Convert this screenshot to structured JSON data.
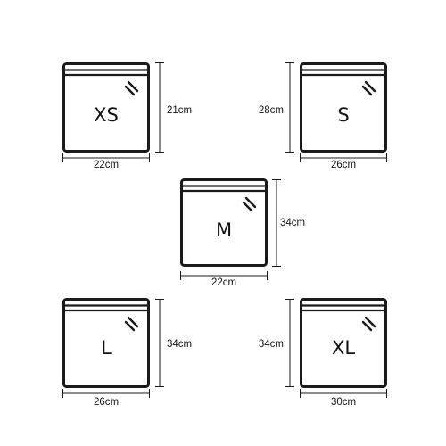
{
  "bags": [
    {
      "size": "XS",
      "width": "22cm",
      "height": "21cm"
    },
    {
      "size": "S",
      "width": "26cm",
      "height": "28cm"
    },
    {
      "size": "M",
      "width": "22cm",
      "height": "34cm"
    },
    {
      "size": "L",
      "width": "26cm",
      "height": "34cm"
    },
    {
      "size": "XL",
      "width": "30cm",
      "height": "34cm"
    }
  ],
  "colors": {
    "outline": "#1a1a1a",
    "background": "#ffffff"
  },
  "icons": {
    "bag": "zip-bag-icon",
    "glare": "glare-marks-icon"
  }
}
